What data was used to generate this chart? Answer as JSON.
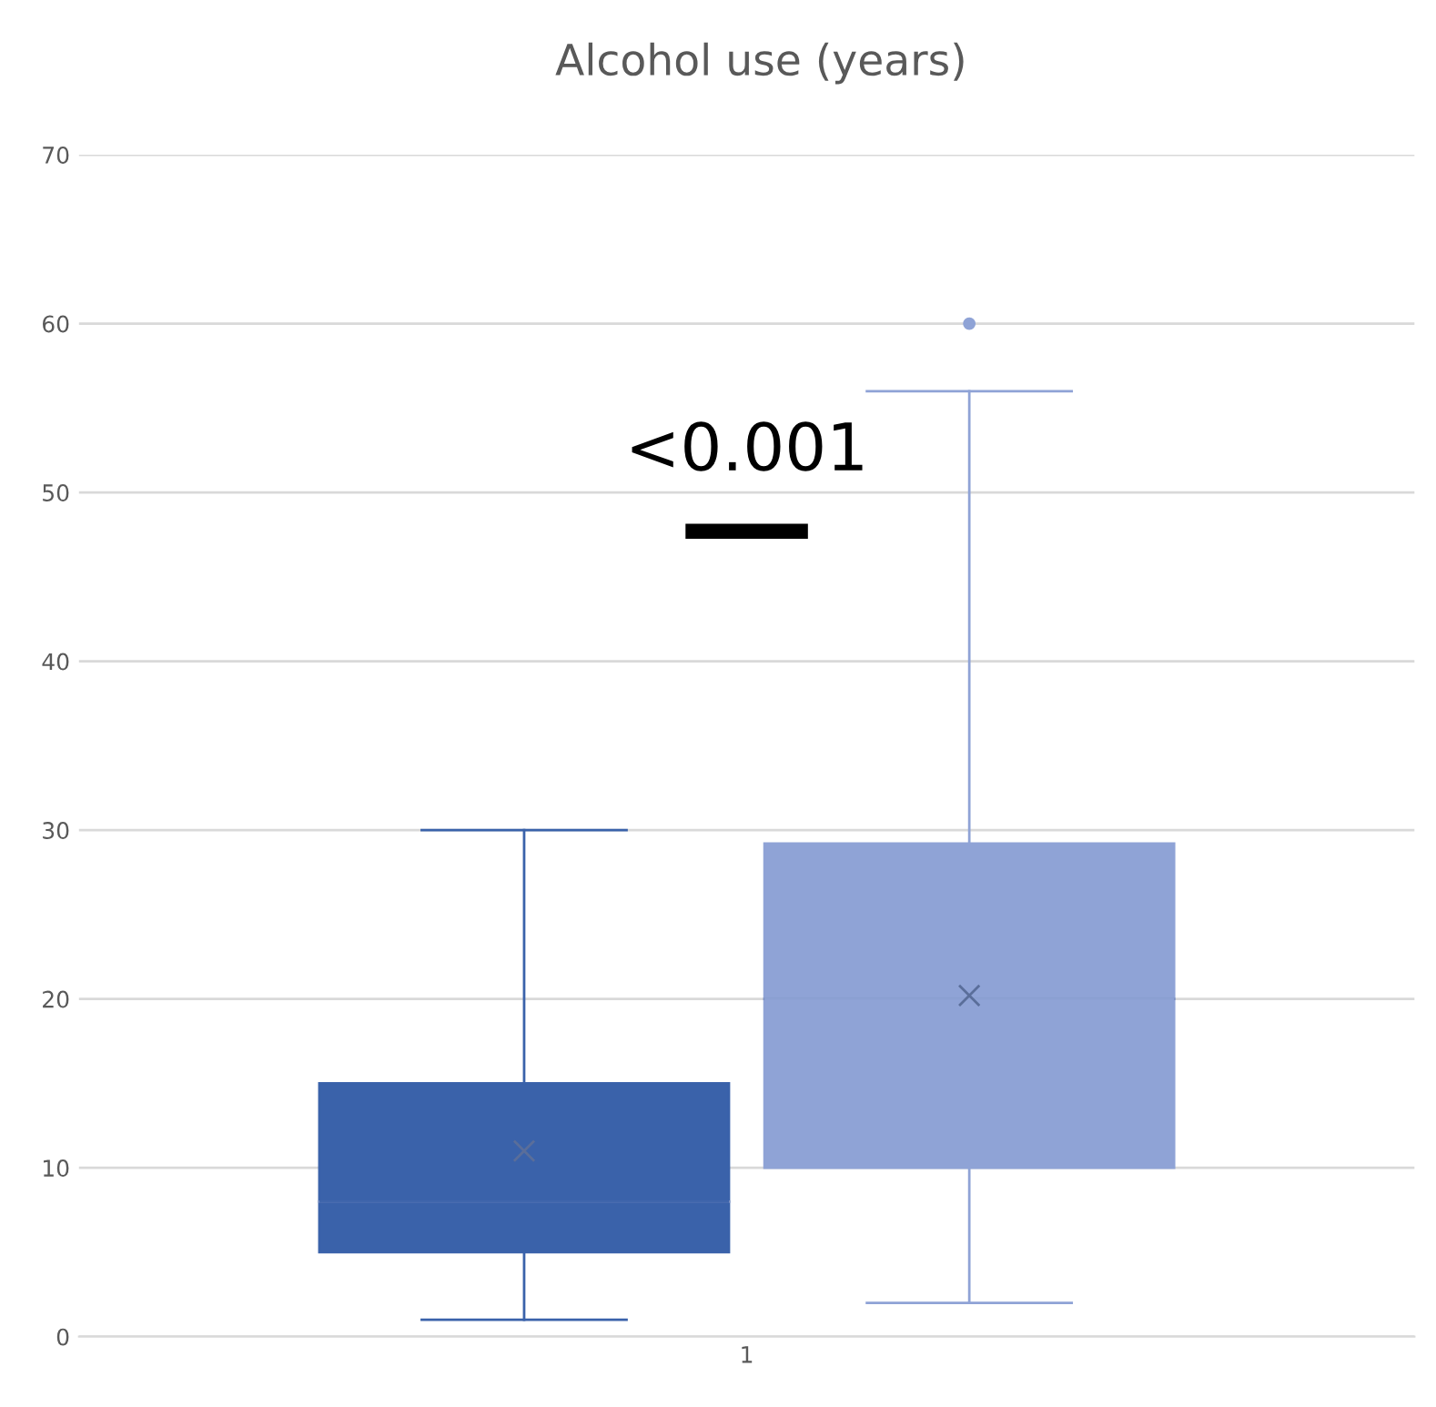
{
  "chart_data": {
    "type": "box",
    "title": "Alcohol use (years)",
    "categories": [
      "1"
    ],
    "series": [
      {
        "color": "#3a62aa",
        "boxes": [
          {
            "low": 1,
            "q1": 5,
            "median": 8,
            "q3": 15,
            "high": 30,
            "mean": 11
          }
        ]
      },
      {
        "color": "#8fa3d6",
        "boxes": [
          {
            "low": 2,
            "q1": 10,
            "median": 20,
            "q3": 29.2,
            "high": 56,
            "mean": 20.2,
            "outliers": [
              60
            ]
          }
        ]
      }
    ],
    "ylim": [
      0,
      70
    ],
    "yticks": [
      0,
      10,
      20,
      30,
      40,
      50,
      60,
      70
    ],
    "grid": "y",
    "legend": false,
    "annotations": [
      "<0.001"
    ]
  }
}
